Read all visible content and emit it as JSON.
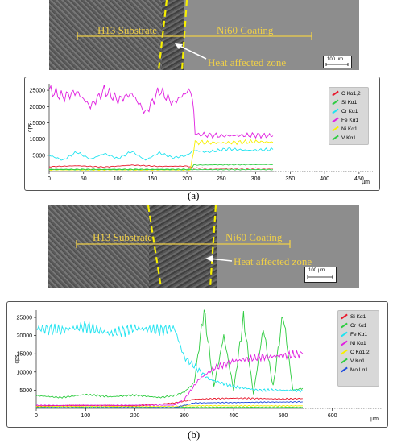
{
  "micrograph_a": {
    "substrate_label": "H13 Substrate",
    "coating_label": "Ni60 Coating",
    "haz_label": "Heat affected zone",
    "scale_label": "100 µm"
  },
  "micrograph_b": {
    "substrate_label": "H13 Substrate",
    "coating_label": "Ni60 Coating",
    "haz_label": "Heat affected zone",
    "scale_label": "100 µm"
  },
  "colors": {
    "red": "#e8192c",
    "green": "#2ecc40",
    "cyan": "#1ee3f0",
    "magenta": "#e020e0",
    "yellow": "#f7f000",
    "blue": "#1e4bdc",
    "annotation": "#f0d048"
  },
  "chart_data": [
    {
      "type": "line",
      "panel": "(a)",
      "ylabel": "cps",
      "xunit": "µm",
      "xlim": [
        0,
        470
      ],
      "ylim": [
        0,
        27000
      ],
      "xticks": [
        0,
        50,
        100,
        150,
        200,
        250,
        300,
        350,
        400,
        450
      ],
      "yticks": [
        5000,
        10000,
        15000,
        20000,
        25000
      ],
      "series": [
        {
          "name": "C Kα1,2",
          "color": "#e8192c",
          "x": [
            0,
            40,
            80,
            120,
            160,
            200,
            210,
            250,
            300,
            325
          ],
          "y": [
            1500,
            1800,
            1400,
            2000,
            1600,
            1700,
            1100,
            1000,
            1050,
            1000
          ]
        },
        {
          "name": "Si Kα1",
          "color": "#2ecc40",
          "x": [
            0,
            100,
            205,
            210,
            250,
            325
          ],
          "y": [
            700,
            700,
            700,
            2000,
            2100,
            2200
          ]
        },
        {
          "name": "Cr Kα1",
          "color": "#1ee3f0",
          "x": [
            0,
            20,
            40,
            60,
            80,
            100,
            120,
            140,
            160,
            180,
            200,
            210,
            230,
            260,
            290,
            325
          ],
          "y": [
            5000,
            3500,
            6000,
            3800,
            5500,
            4000,
            6200,
            3500,
            5800,
            4200,
            5000,
            6500,
            6000,
            7000,
            6500,
            6800
          ]
        },
        {
          "name": "Fe Kα1",
          "color": "#e020e0",
          "x": [
            0,
            20,
            40,
            60,
            80,
            100,
            120,
            140,
            160,
            180,
            200,
            208,
            212,
            250,
            300,
            325
          ],
          "y": [
            25000,
            23000,
            24500,
            20000,
            25000,
            22000,
            24000,
            18000,
            25000,
            21000,
            24500,
            24000,
            11500,
            11000,
            11200,
            11000
          ]
        },
        {
          "name": "Ni Kα1",
          "color": "#f7f000",
          "x": [
            0,
            205,
            212,
            250,
            300,
            325
          ],
          "y": [
            500,
            500,
            9000,
            8800,
            9200,
            9000
          ]
        },
        {
          "name": "V Kα1",
          "color": "#2ecc40",
          "x": [
            0,
            100,
            200,
            325
          ],
          "y": [
            600,
            600,
            600,
            600
          ]
        }
      ]
    },
    {
      "type": "line",
      "panel": "(b)",
      "ylabel": "cps",
      "xunit": "µm",
      "xlim": [
        0,
        700
      ],
      "ylim": [
        0,
        27000
      ],
      "xticks": [
        0,
        100,
        200,
        300,
        400,
        500,
        600
      ],
      "yticks": [
        5000,
        10000,
        15000,
        20000,
        25000
      ],
      "series": [
        {
          "name": "Si Kα1",
          "color": "#e8192c",
          "x": [
            0,
            100,
            200,
            280,
            320,
            400,
            500,
            540
          ],
          "y": [
            700,
            800,
            700,
            1500,
            2500,
            2800,
            2600,
            2700
          ]
        },
        {
          "name": "Cr Kα1",
          "color": "#2ecc40",
          "x": [
            0,
            50,
            100,
            150,
            200,
            250,
            280,
            300,
            320,
            340,
            360,
            380,
            400,
            420,
            440,
            460,
            480,
            500,
            520,
            540
          ],
          "y": [
            3500,
            3000,
            3800,
            3200,
            3600,
            3000,
            3500,
            4500,
            7000,
            27000,
            6000,
            20000,
            5000,
            25000,
            4000,
            22000,
            6000,
            26000,
            5000,
            5500
          ]
        },
        {
          "name": "Fe Kα1",
          "color": "#1ee3f0",
          "x": [
            0,
            50,
            100,
            150,
            200,
            250,
            280,
            300,
            350,
            400,
            450,
            500,
            540
          ],
          "y": [
            22000,
            21500,
            22500,
            20500,
            22000,
            21500,
            22000,
            14000,
            8000,
            6000,
            5000,
            5000,
            4800
          ]
        },
        {
          "name": "Ni Kα1",
          "color": "#e020e0",
          "x": [
            0,
            280,
            300,
            330,
            360,
            400,
            450,
            500,
            540
          ],
          "y": [
            800,
            900,
            2500,
            8000,
            11000,
            13000,
            14000,
            14500,
            15000
          ]
        },
        {
          "name": "C Kα1,2",
          "color": "#f7f000",
          "x": [
            0,
            280,
            300,
            540
          ],
          "y": [
            500,
            500,
            700,
            700
          ]
        },
        {
          "name": "V Kα1",
          "color": "#2ecc40",
          "x": [
            0,
            300,
            540
          ],
          "y": [
            300,
            300,
            300
          ]
        },
        {
          "name": "Mo Lα1",
          "color": "#1e4bdc",
          "x": [
            0,
            280,
            320,
            540
          ],
          "y": [
            200,
            200,
            1500,
            1800
          ]
        }
      ]
    }
  ],
  "captions": {
    "a": "(a)",
    "b": "(b)"
  }
}
